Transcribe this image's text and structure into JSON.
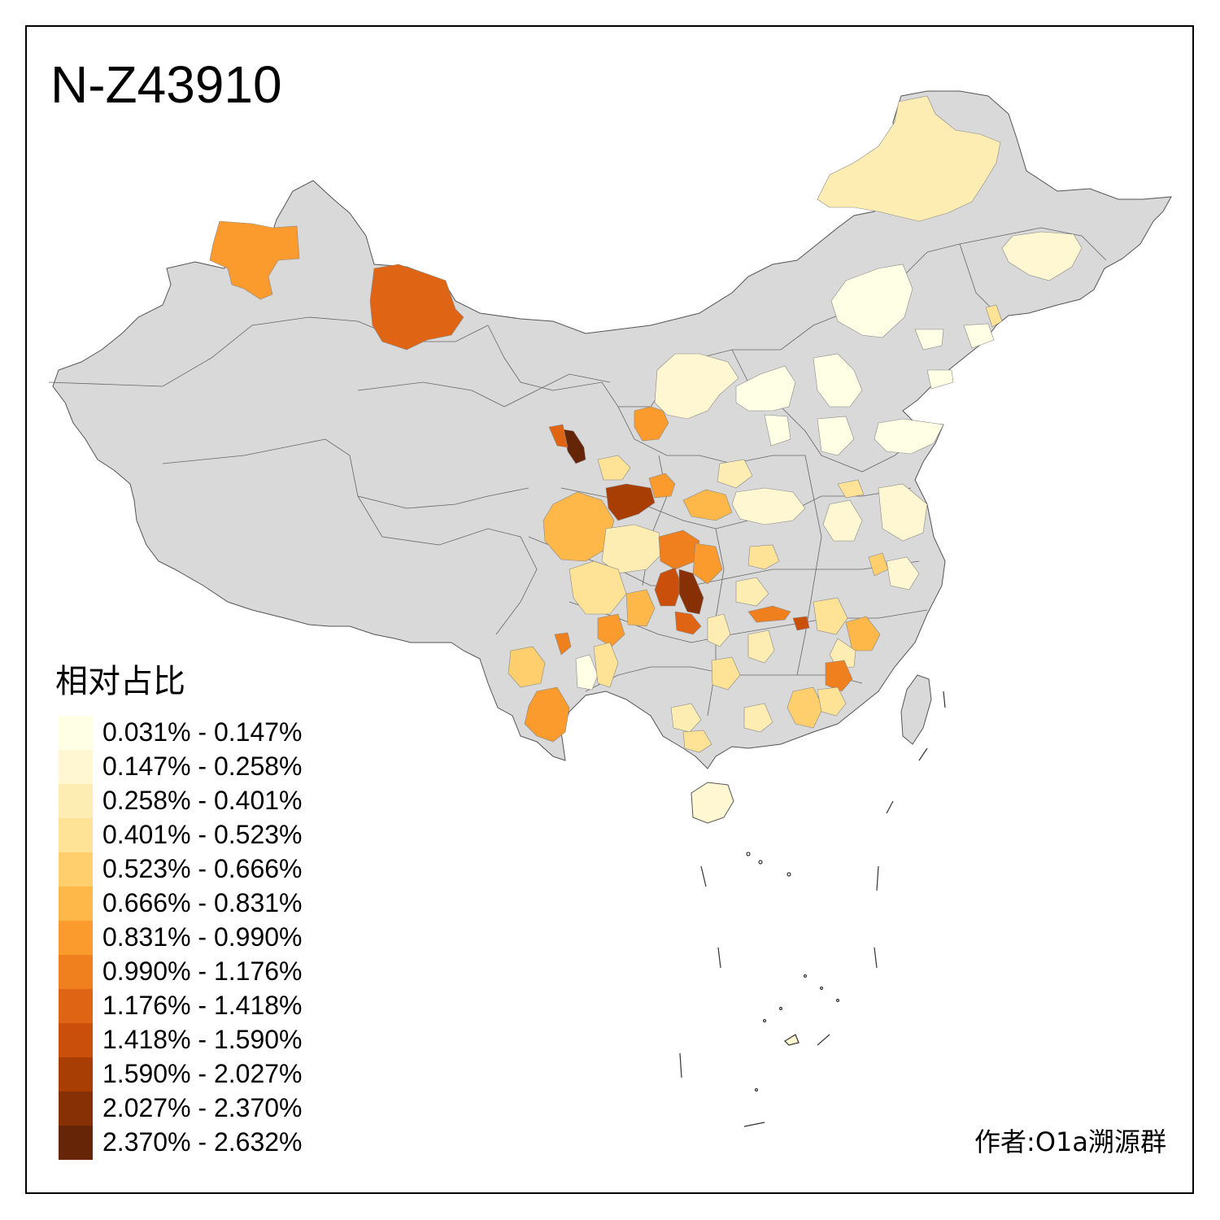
{
  "title": "N-Z43910",
  "legend": {
    "title": "相对占比",
    "items": [
      {
        "label": "0.031% - 0.147%",
        "color": "#FFFFE5"
      },
      {
        "label": "0.147% - 0.258%",
        "color": "#FFF7D1"
      },
      {
        "label": "0.258% - 0.401%",
        "color": "#FEEDB3"
      },
      {
        "label": "0.401% - 0.523%",
        "color": "#FEE295"
      },
      {
        "label": "0.523% - 0.666%",
        "color": "#FECF6C"
      },
      {
        "label": "0.666% - 0.831%",
        "color": "#FDB849"
      },
      {
        "label": "0.831% - 0.990%",
        "color": "#FB9B2D"
      },
      {
        "label": "0.990% - 1.176%",
        "color": "#F07F1E"
      },
      {
        "label": "1.176% - 1.418%",
        "color": "#DF6414"
      },
      {
        "label": "1.418% - 1.590%",
        "color": "#C94F0A"
      },
      {
        "label": "1.590% - 2.027%",
        "color": "#A93E05"
      },
      {
        "label": "2.027% - 2.370%",
        "color": "#873005"
      },
      {
        "label": "2.370% - 2.632%",
        "color": "#662506"
      }
    ]
  },
  "credit": "作者:O1a溯源群",
  "colors": {
    "no_data": "#D9D9D9",
    "border": "#555555",
    "background": "#FFFFFF"
  }
}
